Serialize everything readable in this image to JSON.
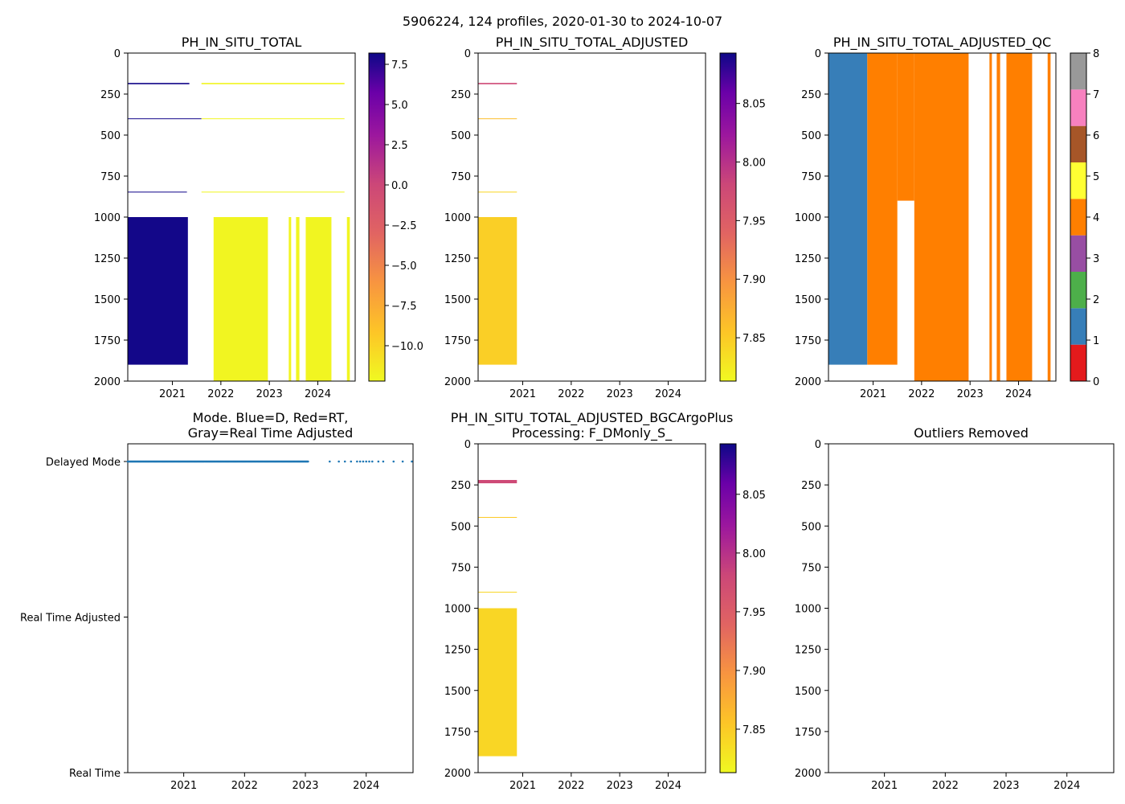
{
  "suptitle": "5906224, 124 profiles, 2020-01-30 to 2024-10-07",
  "chart_data": [
    {
      "id": "p1",
      "type": "heatmap",
      "title": "PH_IN_SITU_TOTAL",
      "xlim": [
        2020.08,
        2024.77
      ],
      "ylim": [
        2000,
        0
      ],
      "xticks": [
        "2021",
        "2022",
        "2023",
        "2024"
      ],
      "xtick_values": [
        2021,
        2022,
        2023,
        2024
      ],
      "yticks": [
        "0",
        "250",
        "500",
        "750",
        "1000",
        "1250",
        "1500",
        "1750",
        "2000"
      ],
      "ytick_values": [
        0,
        250,
        500,
        750,
        1000,
        1250,
        1500,
        1750,
        2000
      ],
      "colorbar": {
        "cmap": "plasma_r",
        "vmin": -12.2,
        "vmax": 8.2,
        "ticks": [
          "−10.0",
          "−7.5",
          "−5.0",
          "−2.5",
          "0.0",
          "2.5",
          "5.0",
          "7.5"
        ],
        "tick_values": [
          -10,
          -7.5,
          -5,
          -2.5,
          0,
          2.5,
          5,
          7.5
        ]
      },
      "blocks": [
        {
          "x": [
            2020.08,
            2021.32
          ],
          "y": [
            1000,
            1900
          ],
          "value": 8.0
        },
        {
          "x": [
            2020.08,
            2021.35
          ],
          "y": [
            182,
            190
          ],
          "value": 8.0
        },
        {
          "x": [
            2020.08,
            2021.6
          ],
          "y": [
            398,
            402
          ],
          "value": 8.0
        },
        {
          "x": [
            2020.08,
            2021.3
          ],
          "y": [
            845,
            850
          ],
          "value": 8.0
        },
        {
          "x": [
            2021.85,
            2022.97
          ],
          "y": [
            1000,
            2000
          ],
          "value": -12.0
        },
        {
          "x": [
            2023.4,
            2023.45
          ],
          "y": [
            1000,
            2000
          ],
          "value": -12.0
        },
        {
          "x": [
            2023.55,
            2023.62
          ],
          "y": [
            1000,
            2000
          ],
          "value": -12.0
        },
        {
          "x": [
            2023.75,
            2024.28
          ],
          "y": [
            1000,
            2000
          ],
          "value": -12.0
        },
        {
          "x": [
            2024.6,
            2024.66
          ],
          "y": [
            1000,
            2000
          ],
          "value": -12.0
        },
        {
          "x": [
            2021.6,
            2024.55
          ],
          "y": [
            182,
            190
          ],
          "value": -12.0
        },
        {
          "x": [
            2021.6,
            2024.55
          ],
          "y": [
            398,
            402
          ],
          "value": -12.0
        },
        {
          "x": [
            2021.6,
            2024.55
          ],
          "y": [
            845,
            850
          ],
          "value": -12.0
        }
      ]
    },
    {
      "id": "p2",
      "type": "heatmap",
      "title": "PH_IN_SITU_TOTAL_ADJUSTED",
      "xlim": [
        2020.08,
        2024.77
      ],
      "ylim": [
        2000,
        0
      ],
      "xticks": [
        "2021",
        "2022",
        "2023",
        "2024"
      ],
      "xtick_values": [
        2021,
        2022,
        2023,
        2024
      ],
      "yticks": [
        "0",
        "250",
        "500",
        "750",
        "1000",
        "1250",
        "1500",
        "1750",
        "2000"
      ],
      "ytick_values": [
        0,
        250,
        500,
        750,
        1000,
        1250,
        1500,
        1750,
        2000
      ],
      "colorbar": {
        "cmap": "plasma_r",
        "vmin": 7.813,
        "vmax": 8.093,
        "ticks": [
          "7.85",
          "7.90",
          "7.95",
          "8.00",
          "8.05"
        ],
        "tick_values": [
          7.85,
          7.9,
          7.95,
          8.0,
          8.05
        ]
      },
      "blocks": [
        {
          "x": [
            2020.08,
            2020.88
          ],
          "y": [
            1000,
            1900
          ],
          "value": 7.845
        },
        {
          "x": [
            2020.08,
            2020.88
          ],
          "y": [
            182,
            190
          ],
          "value": 7.97
        },
        {
          "x": [
            2020.08,
            2020.88
          ],
          "y": [
            398,
            402
          ],
          "value": 7.86
        },
        {
          "x": [
            2020.08,
            2020.88
          ],
          "y": [
            845,
            850
          ],
          "value": 7.84
        }
      ]
    },
    {
      "id": "p3",
      "type": "heatmap",
      "title": "PH_IN_SITU_TOTAL_ADJUSTED_QC",
      "xlim": [
        2020.08,
        2024.77
      ],
      "ylim": [
        2000,
        0
      ],
      "xticks": [
        "2021",
        "2022",
        "2023",
        "2024"
      ],
      "xtick_values": [
        2021,
        2022,
        2023,
        2024
      ],
      "yticks": [
        "0",
        "250",
        "500",
        "750",
        "1000",
        "1250",
        "1500",
        "1750",
        "2000"
      ],
      "ytick_values": [
        0,
        250,
        500,
        750,
        1000,
        1250,
        1500,
        1750,
        2000
      ],
      "colorbar": {
        "cmap": "qc",
        "vmin": 0,
        "vmax": 8,
        "ticks": [
          "0",
          "1",
          "2",
          "3",
          "4",
          "5",
          "6",
          "7",
          "8"
        ],
        "tick_values": [
          0,
          1,
          2,
          3,
          4,
          5,
          6,
          7,
          8
        ],
        "colors": [
          "#e41a1c",
          "#377eb8",
          "#4daf4a",
          "#984ea3",
          "#ff7f00",
          "#ffff33",
          "#a65628",
          "#f781bf",
          "#999999"
        ]
      },
      "blocks": [
        {
          "x": [
            2020.08,
            2020.88
          ],
          "y": [
            0,
            1900
          ],
          "value": 1
        },
        {
          "x": [
            2020.88,
            2021.5
          ],
          "y": [
            0,
            1900
          ],
          "value": 4
        },
        {
          "x": [
            2021.5,
            2021.85
          ],
          "y": [
            0,
            900
          ],
          "value": 4
        },
        {
          "x": [
            2021.85,
            2022.97
          ],
          "y": [
            0,
            2000
          ],
          "value": 4
        },
        {
          "x": [
            2023.4,
            2023.45
          ],
          "y": [
            0,
            2000
          ],
          "value": 4
        },
        {
          "x": [
            2023.55,
            2023.62
          ],
          "y": [
            0,
            2000
          ],
          "value": 4
        },
        {
          "x": [
            2023.75,
            2024.28
          ],
          "y": [
            0,
            2000
          ],
          "value": 4
        },
        {
          "x": [
            2024.6,
            2024.66
          ],
          "y": [
            0,
            2000
          ],
          "value": 4
        }
      ]
    },
    {
      "id": "p4",
      "type": "scatter",
      "title": "Mode. Blue=D, Red=RT,\nGray=Real Time Adjusted",
      "title_lines": [
        "Mode. Blue=D, Red=RT,",
        "Gray=Real Time Adjusted"
      ],
      "xlim": [
        2020.08,
        2024.77
      ],
      "xticks": [
        "2021",
        "2022",
        "2023",
        "2024"
      ],
      "xtick_values": [
        2021,
        2022,
        2023,
        2024
      ],
      "ycategories": [
        "Delayed Mode",
        "Real Time Adjusted",
        "Real Time"
      ],
      "points": {
        "series": "Delayed Mode",
        "color": "#1f77b4",
        "dense_range": [
          2020.08,
          2023.05
        ],
        "sparse_x": [
          2023.4,
          2023.55,
          2023.65,
          2023.75,
          2023.85,
          2023.9,
          2023.95,
          2024.0,
          2024.05,
          2024.1,
          2024.2,
          2024.28,
          2024.45,
          2024.6,
          2024.75
        ]
      }
    },
    {
      "id": "p5",
      "type": "heatmap",
      "title": "PH_IN_SITU_TOTAL_ADJUSTED_BGCArgoPlus\nProcessing: F_DMonly_S_",
      "title_lines": [
        "PH_IN_SITU_TOTAL_ADJUSTED_BGCArgoPlus",
        "Processing: F_DMonly_S_"
      ],
      "xlim": [
        2020.08,
        2024.77
      ],
      "ylim": [
        2000,
        0
      ],
      "xticks": [
        "2021",
        "2022",
        "2023",
        "2024"
      ],
      "xtick_values": [
        2021,
        2022,
        2023,
        2024
      ],
      "yticks": [
        "0",
        "250",
        "500",
        "750",
        "1000",
        "1250",
        "1500",
        "1750",
        "2000"
      ],
      "ytick_values": [
        0,
        250,
        500,
        750,
        1000,
        1250,
        1500,
        1750,
        2000
      ],
      "colorbar": {
        "cmap": "plasma_r",
        "vmin": 7.813,
        "vmax": 8.093,
        "ticks": [
          "7.85",
          "7.90",
          "7.95",
          "8.00",
          "8.05"
        ],
        "tick_values": [
          7.85,
          7.9,
          7.95,
          8.0,
          8.05
        ]
      },
      "blocks": [
        {
          "x": [
            2020.08,
            2020.88
          ],
          "y": [
            1000,
            1900
          ],
          "value": 7.84
        },
        {
          "x": [
            2020.08,
            2020.88
          ],
          "y": [
            220,
            240
          ],
          "value": 7.97
        },
        {
          "x": [
            2020.08,
            2020.88
          ],
          "y": [
            445,
            450
          ],
          "value": 7.85
        },
        {
          "x": [
            2020.08,
            2020.88
          ],
          "y": [
            900,
            905
          ],
          "value": 7.84
        }
      ]
    },
    {
      "id": "p6",
      "type": "heatmap",
      "title": "Outliers Removed",
      "xlim": [
        2020.08,
        2024.77
      ],
      "ylim": [
        2000,
        0
      ],
      "xticks": [
        "2021",
        "2022",
        "2023",
        "2024"
      ],
      "xtick_values": [
        2021,
        2022,
        2023,
        2024
      ],
      "yticks": [
        "0",
        "250",
        "500",
        "750",
        "1000",
        "1250",
        "1500",
        "1750",
        "2000"
      ],
      "ytick_values": [
        0,
        250,
        500,
        750,
        1000,
        1250,
        1500,
        1750,
        2000
      ],
      "blocks": []
    }
  ]
}
